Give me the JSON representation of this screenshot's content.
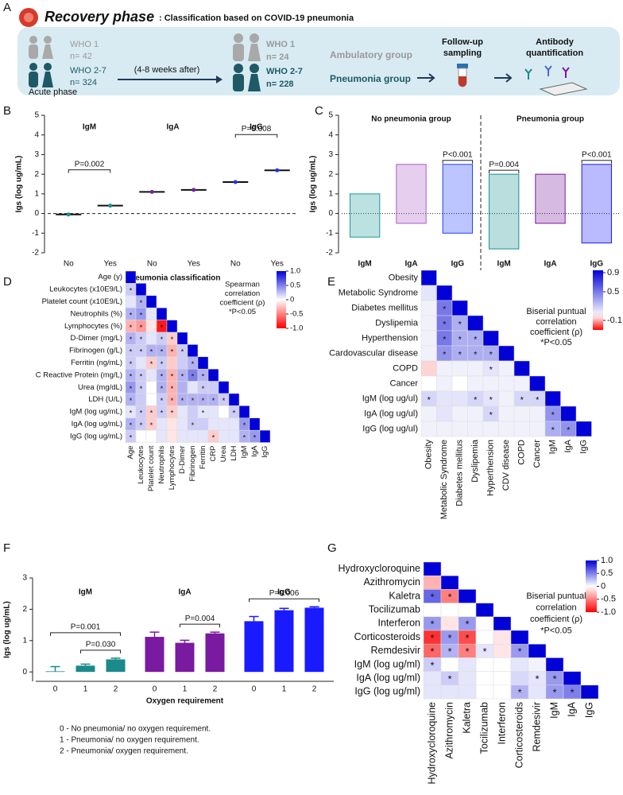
{
  "panel_a": {
    "label": "A",
    "title": "Recovery phase",
    "subtitle": ": Classification based on COVID-19 pneumonia",
    "acute": {
      "who1": "WHO 1",
      "n1": "n= 42",
      "who27": "WHO 2-7",
      "n27": "n= 324",
      "caption": "Acute phase"
    },
    "interval": "(4-8 weeks after)",
    "recovery": {
      "who1": "WHO 1",
      "n1": "n= 24",
      "group1": "Ambulatory group",
      "who27": "WHO 2-7",
      "n27": "n= 228",
      "group27": "Pneumonia group"
    },
    "sampling": [
      "Follow-up",
      "sampling"
    ],
    "quantification": [
      "Antibody",
      "quantification"
    ]
  },
  "chart_data": [
    {
      "type": "strip",
      "label": "B",
      "y_label": "Igs (log ug/mL)",
      "x_label": "Pneumonia classification",
      "categories": [
        "No",
        "Yes"
      ],
      "ylim": [
        -2,
        5
      ],
      "yticks": [
        -2,
        -1,
        0,
        1,
        2,
        3,
        4,
        5
      ],
      "hline": 0,
      "series": [
        {
          "name": "IgM",
          "color": "#1a8f8f",
          "values": [
            -0.05,
            0.4
          ]
        },
        {
          "name": "IgA",
          "color": "#7a1fa0",
          "values": [
            1.1,
            1.2
          ]
        },
        {
          "name": "IgG",
          "color": "#2030ff",
          "values": [
            1.6,
            2.2
          ]
        }
      ],
      "annotations": [
        {
          "label": "P=0.002",
          "series": 0
        },
        {
          "label": "P=0.008",
          "series": 2
        }
      ]
    },
    {
      "type": "paired",
      "label": "C",
      "y_label": "Igs (log ug/mL)",
      "ylim": [
        -2,
        5
      ],
      "yticks": [
        -2,
        -1,
        0,
        1,
        2,
        3,
        4,
        5
      ],
      "hline": 0,
      "groups": [
        {
          "name": "No pneumonia group",
          "series": [
            {
              "name": "IgM",
              "color": "#1f9a9a",
              "values": [
                -1.2,
                1.0
              ]
            },
            {
              "name": "IgA",
              "color": "#a85cc8",
              "values": [
                -0.5,
                2.5
              ]
            },
            {
              "name": "IgG",
              "color": "#2040ff",
              "values": [
                -1.0,
                2.5
              ],
              "annotation": "P<0.001"
            }
          ]
        },
        {
          "name": "Pneumonia group",
          "series": [
            {
              "name": "IgM",
              "color": "#1a8f8f",
              "values": [
                -1.8,
                2.0
              ],
              "annotation": "P=0.004"
            },
            {
              "name": "IgA",
              "color": "#7a1a9a",
              "values": [
                -0.5,
                2.0
              ]
            },
            {
              "name": "IgG",
              "color": "#1a1aff",
              "values": [
                -1.5,
                2.5
              ],
              "annotation": "P<0.001"
            }
          ]
        }
      ]
    },
    {
      "type": "heatmap",
      "label": "D",
      "row_labels": [
        "Age (y)",
        "Leukocytes (x10E9/L)",
        "Platelet count (x10E9/L)",
        "Neutrophils (%)",
        "Lymphocytes (%)",
        "D-Dimer (mg/L)",
        "Fibrinogen (g/L)",
        "Ferritin (ng/mL)",
        "C Reactive Protein (mg/L)",
        "Urea (mg/dL)",
        "LDH (U/L)",
        "IgM (log ug/mL)",
        "IgA (log ug/mL)",
        "IgG (log ug/mL)"
      ],
      "col_labels": [
        "Age",
        "Leukocytes",
        "Platelet count",
        "Neutrophils",
        "Lymphocytes",
        "D-Dimer",
        "Fibrinogen",
        "Ferritin",
        "CRP",
        "Urea",
        "LDH",
        "IgM",
        "IgA",
        "IgG"
      ],
      "values": [
        [
          1
        ],
        [
          0.2,
          1
        ],
        [
          0.1,
          0.3,
          1
        ],
        [
          0.3,
          0.4,
          0.1,
          1
        ],
        [
          -0.3,
          -0.4,
          -0.1,
          -0.9,
          1
        ],
        [
          0.3,
          0.2,
          0.1,
          0.2,
          -0.2,
          1
        ],
        [
          0.2,
          0.2,
          0.3,
          0.3,
          -0.3,
          0.2,
          1
        ],
        [
          0.2,
          0.1,
          -0.2,
          0.2,
          -0.2,
          0.2,
          0.3,
          1
        ],
        [
          0.3,
          0.2,
          0.1,
          0.3,
          -0.3,
          0.3,
          0.5,
          0.3,
          1
        ],
        [
          0.4,
          0.2,
          0,
          0.3,
          -0.3,
          0.3,
          0.1,
          0.2,
          0.2,
          1
        ],
        [
          0.3,
          0.2,
          0,
          0.2,
          -0.3,
          0.3,
          0.3,
          0.3,
          0.3,
          0.2,
          1
        ],
        [
          0.1,
          0.2,
          -0.2,
          0.2,
          -0.2,
          0.1,
          0.2,
          0.1,
          0.1,
          0,
          0.2,
          1
        ],
        [
          0.3,
          0.2,
          -0.2,
          0.1,
          -0.1,
          0.1,
          0.2,
          0.2,
          0.1,
          0.1,
          0.1,
          0.4,
          1
        ],
        [
          0.2,
          0,
          0,
          0.1,
          -0.1,
          0.1,
          0.1,
          0.1,
          -0.2,
          0.1,
          0.1,
          0.3,
          0.4,
          1
        ]
      ],
      "significance": [
        [
          null
        ],
        [
          "*",
          null
        ],
        [
          null,
          "*",
          null
        ],
        [
          "*",
          "*",
          null,
          null
        ],
        [
          "*",
          "*",
          null,
          "*",
          null
        ],
        [
          "*",
          "*",
          null,
          "*",
          "*",
          null
        ],
        [
          "*",
          "*",
          "*",
          "*",
          "*",
          "*",
          null
        ],
        [
          "*",
          null,
          "*",
          "*",
          null,
          null,
          "*",
          null
        ],
        [
          "*",
          "*",
          null,
          "*",
          "*",
          "*",
          "*",
          "*",
          null
        ],
        [
          "*",
          "*",
          null,
          "*",
          "*",
          null,
          null,
          "*",
          null,
          null
        ],
        [
          "*",
          null,
          null,
          "*",
          "*",
          "*",
          "*",
          "*",
          "*",
          "*",
          null
        ],
        [
          "*",
          "*",
          "*",
          "*",
          "*",
          null,
          null,
          "*",
          null,
          null,
          "*",
          null
        ],
        [
          "*",
          "*",
          "*",
          null,
          null,
          null,
          "*",
          null,
          null,
          null,
          null,
          "*",
          null
        ],
        [
          "*",
          null,
          null,
          null,
          null,
          null,
          null,
          null,
          "*",
          null,
          null,
          "*",
          "*",
          null
        ]
      ],
      "clim": [
        -1,
        1
      ],
      "cticks": [
        {
          "value": 1,
          "label": "1.0"
        },
        0.5,
        0,
        -0.5,
        {
          "value": -1,
          "label": "-1.0"
        }
      ],
      "legend_text": [
        "Spearman",
        "correlation",
        "coefficient (ρ)",
        "*P<0.05"
      ]
    },
    {
      "type": "heatmap",
      "label": "E",
      "row_labels": [
        "Obesity",
        "Metabolic Syndrome",
        "Diabetes mellitus",
        "Dyslipemia",
        "Hyperthension",
        "Cardovascular disease",
        "COPD",
        "Cancer",
        "IgM (log ug/ul)",
        "IgA (log ug/ul)",
        "IgG (log ug/ul)"
      ],
      "col_labels": [
        "Obesity",
        "Metabolic Syndrome",
        "Diabetes mellitus",
        "Dyslipemia",
        "Hyperthension",
        "CDV disease",
        "COPD",
        "Cancer",
        "IgM",
        "IgA",
        "IgG"
      ],
      "values": [
        [
          1
        ],
        [
          0.1,
          1
        ],
        [
          0.05,
          0.5,
          1
        ],
        [
          0.05,
          0.5,
          0.3,
          1
        ],
        [
          0.05,
          0.5,
          0.3,
          0.3,
          1
        ],
        [
          0.05,
          0.4,
          0.3,
          0.3,
          0.3,
          1
        ],
        [
          -0.05,
          0.05,
          0.05,
          0.05,
          0.1,
          0.05,
          1
        ],
        [
          0,
          0.05,
          0,
          0.05,
          0.05,
          0.05,
          0.05,
          1
        ],
        [
          0.15,
          0.1,
          0.1,
          0.15,
          0.1,
          0.05,
          0.15,
          0.15,
          1
        ],
        [
          0.05,
          0.1,
          0.05,
          0.05,
          0.15,
          0.05,
          0.05,
          0.05,
          0.4,
          1
        ],
        [
          0.05,
          0.05,
          0.05,
          0.05,
          0.05,
          0.05,
          0.05,
          0.05,
          0.3,
          0.4,
          1
        ]
      ],
      "significance": [
        [
          null
        ],
        [
          null,
          null
        ],
        [
          null,
          "*",
          null
        ],
        [
          null,
          "*",
          "*",
          null
        ],
        [
          null,
          "*",
          "*",
          "*",
          null
        ],
        [
          null,
          "*",
          "*",
          "*",
          "*",
          null
        ],
        [
          null,
          null,
          null,
          null,
          "*",
          null,
          null
        ],
        [
          null,
          null,
          null,
          null,
          null,
          null,
          null,
          null
        ],
        [
          "*",
          null,
          null,
          "*",
          "*",
          null,
          "*",
          "*",
          null
        ],
        [
          null,
          null,
          null,
          null,
          "*",
          null,
          null,
          null,
          "*",
          null
        ],
        [
          null,
          null,
          null,
          null,
          null,
          null,
          null,
          null,
          "*",
          "*",
          null
        ]
      ],
      "clim": [
        -0.3,
        0.95
      ],
      "cticks": [
        0.9,
        0.5,
        -0.1
      ],
      "legend_text": [
        "Biserial puntual",
        "correlation",
        "coefficient (ρ)",
        "*P<0.05"
      ]
    },
    {
      "type": "bar",
      "label": "F",
      "y_label": "Igs (log ug/mL)",
      "x_label": "Oxygen requirement",
      "categories": [
        "0",
        "1",
        "2"
      ],
      "ylim": [
        -0.3,
        3
      ],
      "yticks": [
        0,
        1,
        2,
        3
      ],
      "series": [
        {
          "name": "IgM",
          "color": "#1a8a8a",
          "values": [
            0.02,
            0.2,
            0.4
          ],
          "errors": [
            0.15,
            0.05,
            0.04
          ]
        },
        {
          "name": "IgA",
          "color": "#7a1aa0",
          "values": [
            1.12,
            0.93,
            1.23
          ],
          "errors": [
            0.15,
            0.08,
            0.04
          ]
        },
        {
          "name": "IgG",
          "color": "#1a1aff",
          "values": [
            1.62,
            1.97,
            2.05
          ],
          "errors": [
            0.15,
            0.06,
            0.03
          ]
        }
      ],
      "annotations": [
        {
          "label": "P=0.001",
          "series": 0,
          "from": 0,
          "to": 2
        },
        {
          "label": "P=0.030",
          "series": 0,
          "from": 1,
          "to": 2
        },
        {
          "label": "P=0.004",
          "series": 1,
          "from": 1,
          "to": 2
        },
        {
          "label": "P=0.006",
          "series": 2,
          "from": 0,
          "to": 2
        }
      ],
      "notes": [
        "0 - No pneumonia/ no oxygen requirement.",
        "1 - Pneumonia/ no oxygen requirement.",
        "2 - Pneumonia/ oxygen requirement."
      ]
    },
    {
      "type": "heatmap",
      "label": "G",
      "row_labels": [
        "Hydroxycloroquine",
        "Azithromycin",
        "Kaletra",
        "Tocilizumab",
        "Interferon",
        "Corticosteroids",
        "Remdesivir",
        "IgM (log ug/ml)",
        "IgA (log ug/ml)",
        "IgG (log ug/ml)"
      ],
      "col_labels": [
        "Hydroxycloroquine",
        "Azithromycin",
        "Kaletra",
        "Tocilizumab",
        "Interferon",
        "Corticosteroids",
        "Remdesivir",
        "IgM",
        "IgA",
        "IgG"
      ],
      "values": [
        [
          1
        ],
        [
          -0.3,
          1
        ],
        [
          0.6,
          -0.5,
          1
        ],
        [
          0,
          0,
          0,
          1
        ],
        [
          0.4,
          -0.1,
          0.4,
          0,
          1
        ],
        [
          -0.8,
          0.4,
          -0.7,
          0,
          -0.1,
          1
        ],
        [
          -0.6,
          0.3,
          -0.5,
          0.1,
          -0.1,
          0.4,
          1
        ],
        [
          0.2,
          0,
          0.1,
          0,
          0,
          0.1,
          0.05,
          1
        ],
        [
          0.1,
          0.2,
          0.1,
          0,
          0,
          0.15,
          0.1,
          0.4,
          1
        ],
        [
          0.1,
          0.1,
          0.1,
          0,
          0,
          0.3,
          0.1,
          0.4,
          0.5,
          1
        ]
      ],
      "significance": [
        [
          null
        ],
        [
          null,
          null
        ],
        [
          "*",
          "*",
          null
        ],
        [
          null,
          null,
          null,
          null
        ],
        [
          "*",
          null,
          "*",
          null,
          null
        ],
        [
          "*",
          "*",
          "*",
          null,
          null,
          null
        ],
        [
          "*",
          "*",
          "*",
          "*",
          null,
          "*",
          null
        ],
        [
          "*",
          null,
          null,
          null,
          null,
          null,
          null,
          null
        ],
        [
          null,
          "*",
          null,
          null,
          null,
          null,
          "*",
          "*",
          null
        ],
        [
          null,
          null,
          null,
          null,
          null,
          "*",
          null,
          "*",
          "*",
          null
        ]
      ],
      "clim": [
        -1,
        1
      ],
      "cticks": [
        {
          "value": 1,
          "label": "1.0"
        },
        0.5,
        0,
        -0.5,
        {
          "value": -1,
          "label": "-1.0"
        }
      ],
      "legend_text": [
        "Biserial puntual",
        "correlation",
        "coefficient (ρ)",
        "*P<0.05"
      ]
    }
  ]
}
